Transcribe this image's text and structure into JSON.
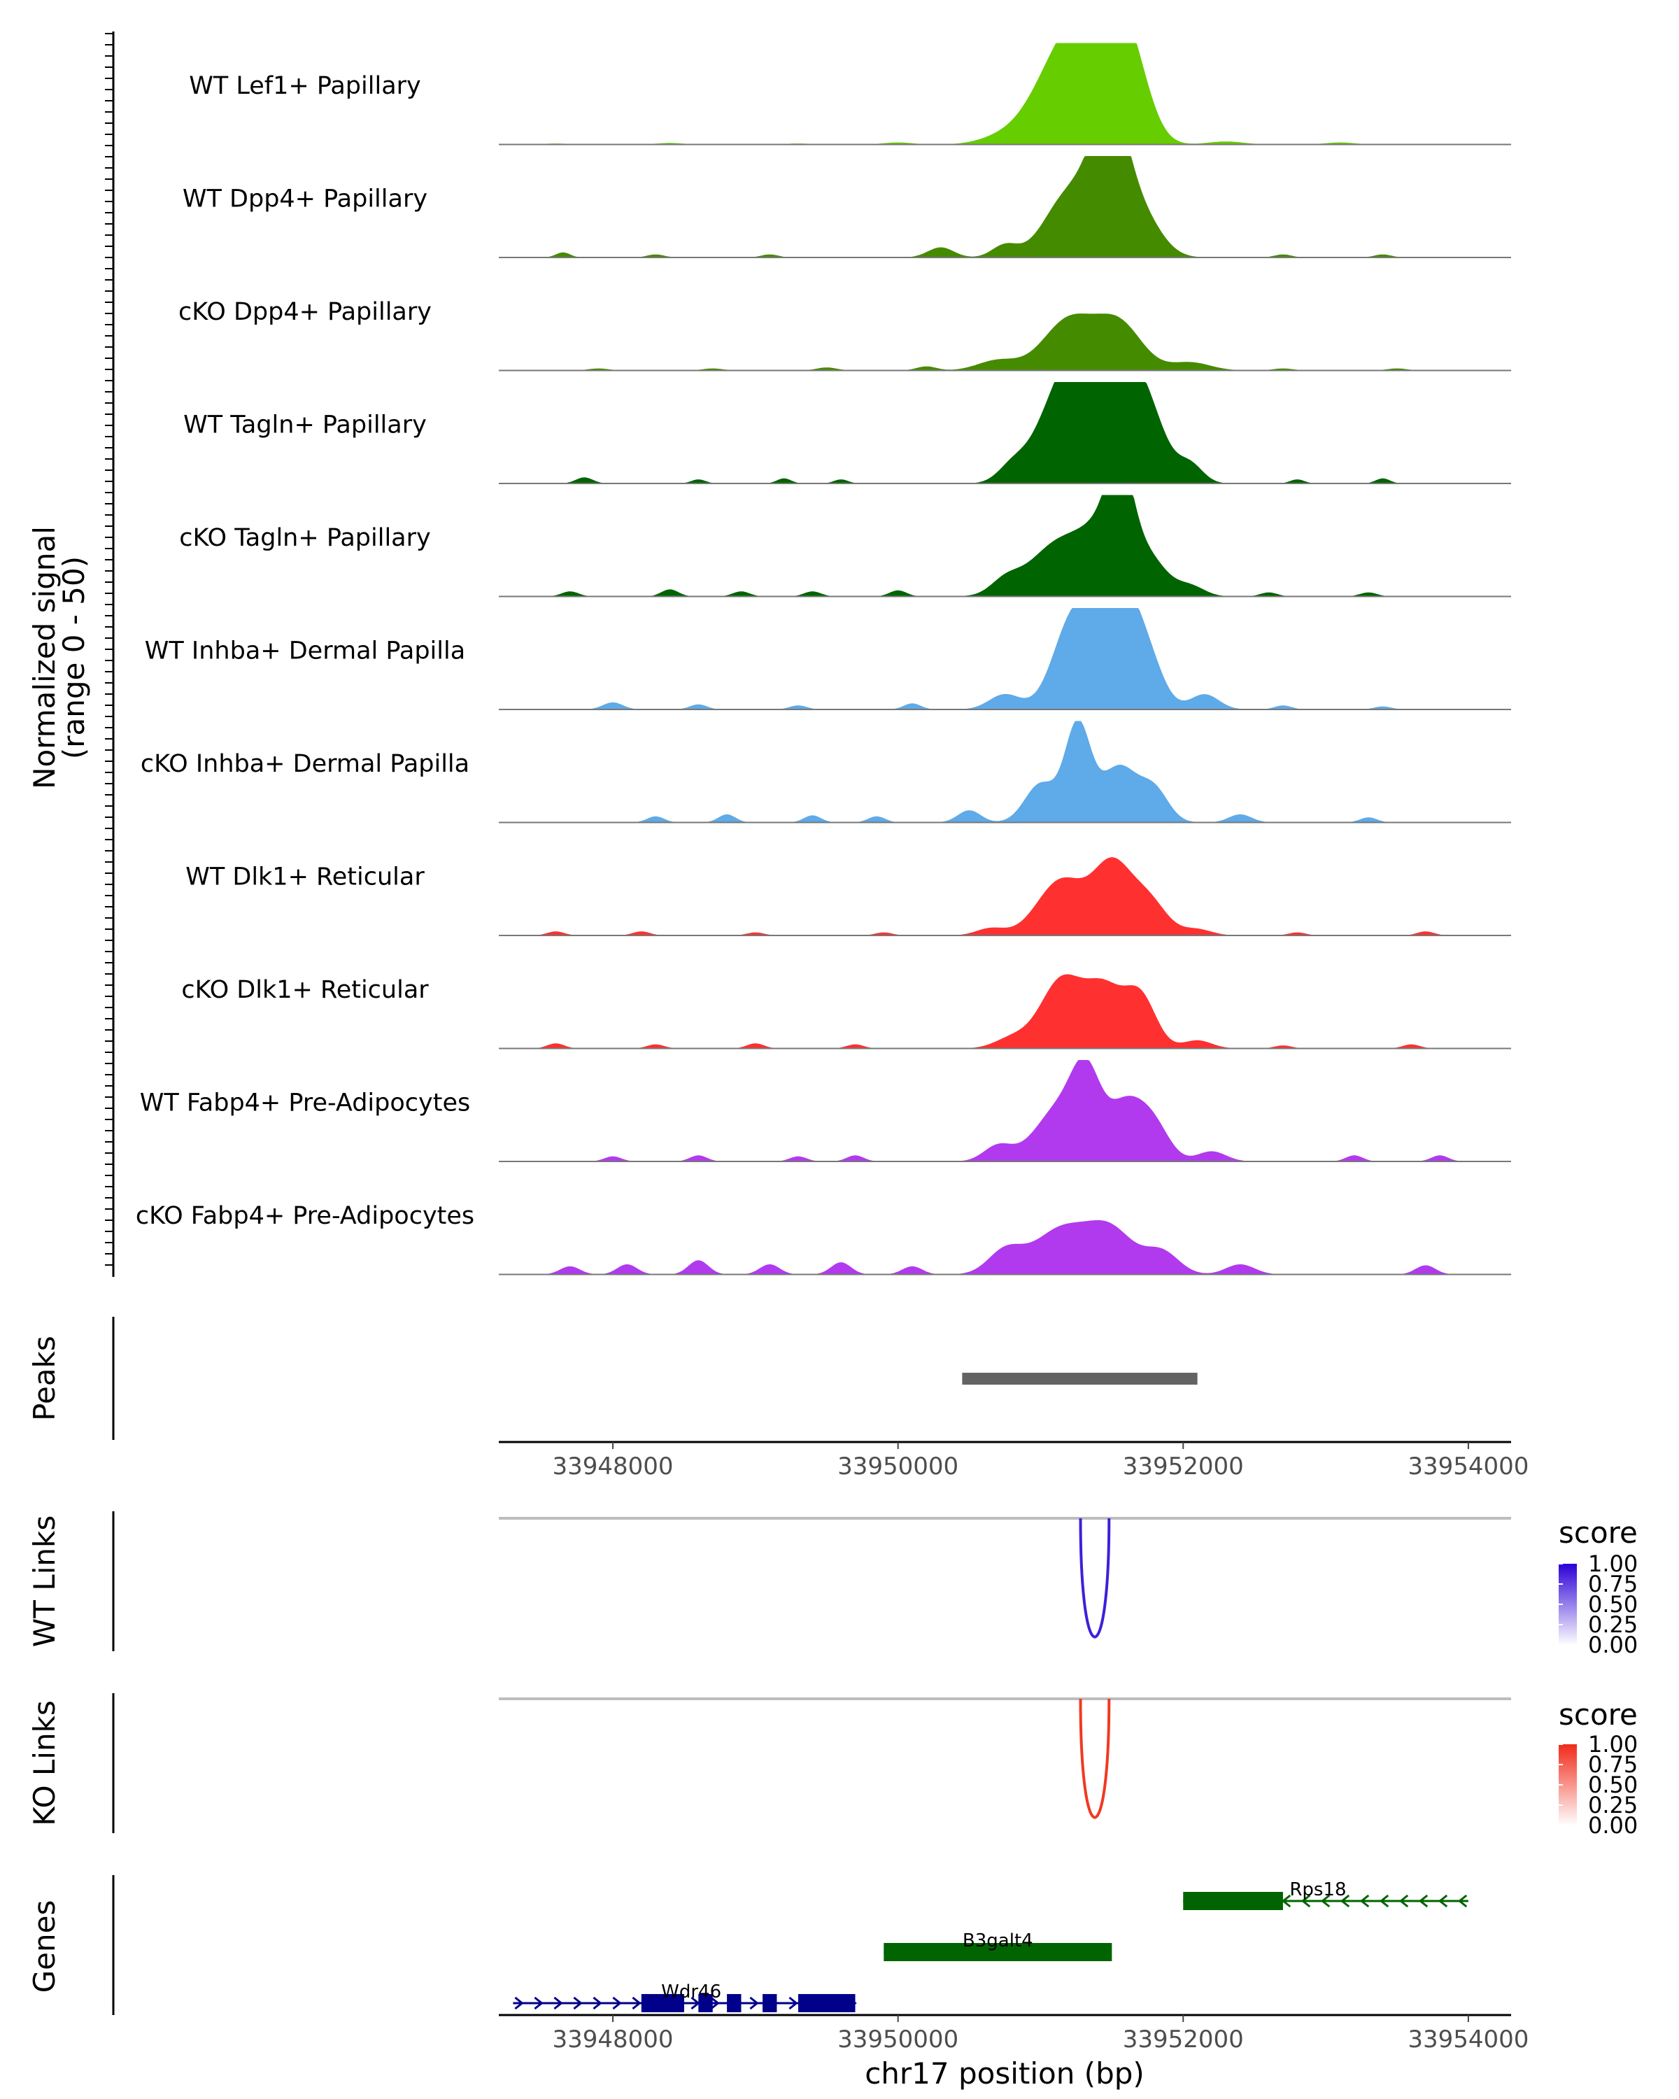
{
  "chart_data": {
    "type": "area",
    "title": "",
    "x_range": [
      33947200,
      33954300
    ],
    "xlabel": "chr17 position (bp)",
    "x_ticks": [
      33948000,
      33950000,
      33952000,
      33954000
    ],
    "x_tick_labels": [
      "33948000",
      "33950000",
      "33952000",
      "33954000"
    ],
    "coverage": {
      "ylabel_line1": "Normalized signal",
      "ylabel_line2": "(range 0 - 50)",
      "ylim": [
        0,
        50
      ],
      "tracks": [
        {
          "name": "WT Lef1+ Papillary",
          "color": "#66CD00",
          "peaks": [
            [
              33951100,
              0.58,
              200
            ],
            [
              33951300,
              0.7,
              180
            ],
            [
              33951500,
              0.78,
              150
            ],
            [
              33951650,
              0.52,
              130
            ],
            [
              33950700,
              0.05,
              150
            ],
            [
              33952300,
              0.03,
              120
            ]
          ],
          "noise": [
            [
              33947600,
              0.01,
              80
            ],
            [
              33948400,
              0.015,
              90
            ],
            [
              33949300,
              0.01,
              80
            ],
            [
              33950000,
              0.02,
              100
            ],
            [
              33953100,
              0.02,
              100
            ]
          ]
        },
        {
          "name": "WT Dpp4+ Papillary",
          "color": "#458B00",
          "peaks": [
            [
              33951200,
              0.62,
              170
            ],
            [
              33951400,
              0.48,
              110
            ],
            [
              33951520,
              0.95,
              110
            ],
            [
              33951700,
              0.42,
              140
            ],
            [
              33950300,
              0.1,
              90
            ],
            [
              33950750,
              0.12,
              90
            ]
          ],
          "noise": [
            [
              33947650,
              0.05,
              50
            ],
            [
              33948300,
              0.03,
              60
            ],
            [
              33949100,
              0.03,
              60
            ],
            [
              33952700,
              0.03,
              60
            ],
            [
              33953400,
              0.03,
              60
            ]
          ]
        },
        {
          "name": "cKO Dpp4+ Papillary",
          "color": "#458B00",
          "peaks": [
            [
              33951200,
              0.5,
              180
            ],
            [
              33951550,
              0.45,
              160
            ],
            [
              33950700,
              0.1,
              140
            ],
            [
              33952050,
              0.08,
              140
            ]
          ],
          "noise": [
            [
              33947900,
              0.02,
              70
            ],
            [
              33948700,
              0.02,
              70
            ],
            [
              33949500,
              0.03,
              70
            ],
            [
              33950200,
              0.04,
              70
            ],
            [
              33952700,
              0.02,
              70
            ],
            [
              33953500,
              0.02,
              70
            ]
          ]
        },
        {
          "name": "WT Tagln+ Papillary",
          "color": "#006400",
          "peaks": [
            [
              33951150,
              0.92,
              170
            ],
            [
              33951350,
              0.8,
              130
            ],
            [
              33951560,
              0.95,
              140
            ],
            [
              33951760,
              0.58,
              130
            ],
            [
              33950800,
              0.15,
              100
            ],
            [
              33952050,
              0.18,
              90
            ]
          ],
          "noise": [
            [
              33947800,
              0.06,
              60
            ],
            [
              33948600,
              0.04,
              50
            ],
            [
              33949200,
              0.05,
              50
            ],
            [
              33949600,
              0.04,
              50
            ],
            [
              33952800,
              0.04,
              50
            ],
            [
              33953400,
              0.05,
              50
            ]
          ]
        },
        {
          "name": "cKO Tagln+ Papillary",
          "color": "#006400",
          "peaks": [
            [
              33951150,
              0.55,
              220
            ],
            [
              33951450,
              0.45,
              140
            ],
            [
              33951560,
              0.85,
              90
            ],
            [
              33951750,
              0.38,
              130
            ],
            [
              33950750,
              0.12,
              100
            ],
            [
              33952050,
              0.1,
              100
            ]
          ],
          "noise": [
            [
              33947700,
              0.05,
              60
            ],
            [
              33948400,
              0.07,
              60
            ],
            [
              33948900,
              0.05,
              60
            ],
            [
              33949400,
              0.05,
              60
            ],
            [
              33950000,
              0.06,
              60
            ],
            [
              33952600,
              0.04,
              60
            ],
            [
              33953300,
              0.04,
              60
            ]
          ]
        },
        {
          "name": "WT Inhba+ Dermal Papilla",
          "color": "#5FAAE8",
          "peaks": [
            [
              33951230,
              0.9,
              140
            ],
            [
              33951430,
              0.62,
              110
            ],
            [
              33951600,
              0.85,
              110
            ],
            [
              33951760,
              0.42,
              110
            ],
            [
              33950750,
              0.15,
              110
            ],
            [
              33952150,
              0.15,
              100
            ]
          ],
          "noise": [
            [
              33948000,
              0.07,
              70
            ],
            [
              33948600,
              0.05,
              60
            ],
            [
              33949300,
              0.04,
              60
            ],
            [
              33950100,
              0.06,
              60
            ],
            [
              33952700,
              0.04,
              60
            ],
            [
              33953400,
              0.03,
              60
            ]
          ]
        },
        {
          "name": "cKO Inhba+ Dermal Papilla",
          "color": "#5FAAE8",
          "peaks": [
            [
              33951000,
              0.38,
              110
            ],
            [
              33951260,
              0.95,
              90
            ],
            [
              33951550,
              0.55,
              130
            ],
            [
              33951800,
              0.3,
              100
            ],
            [
              33950500,
              0.12,
              80
            ],
            [
              33952400,
              0.08,
              80
            ]
          ],
          "noise": [
            [
              33948300,
              0.06,
              60
            ],
            [
              33948800,
              0.08,
              60
            ],
            [
              33949400,
              0.07,
              60
            ],
            [
              33949850,
              0.06,
              60
            ],
            [
              33953300,
              0.05,
              60
            ]
          ]
        },
        {
          "name": "WT Dlk1+ Reticular",
          "color": "#FF3030",
          "peaks": [
            [
              33951150,
              0.55,
              170
            ],
            [
              33951500,
              0.65,
              130
            ],
            [
              33951750,
              0.35,
              130
            ],
            [
              33950650,
              0.07,
              100
            ],
            [
              33952100,
              0.06,
              100
            ]
          ],
          "noise": [
            [
              33947600,
              0.04,
              60
            ],
            [
              33948200,
              0.04,
              60
            ],
            [
              33949000,
              0.03,
              60
            ],
            [
              33949900,
              0.03,
              60
            ],
            [
              33952800,
              0.03,
              60
            ],
            [
              33953700,
              0.04,
              60
            ]
          ]
        },
        {
          "name": "cKO Dlk1+ Reticular",
          "color": "#FF3030",
          "peaks": [
            [
              33951150,
              0.68,
              150
            ],
            [
              33951450,
              0.55,
              130
            ],
            [
              33951700,
              0.5,
              110
            ],
            [
              33950800,
              0.1,
              120
            ],
            [
              33952100,
              0.08,
              100
            ]
          ],
          "noise": [
            [
              33947600,
              0.05,
              60
            ],
            [
              33948300,
              0.04,
              60
            ],
            [
              33949000,
              0.05,
              60
            ],
            [
              33949700,
              0.04,
              60
            ],
            [
              33952700,
              0.03,
              60
            ],
            [
              33953600,
              0.04,
              60
            ]
          ]
        },
        {
          "name": "WT Fabp4+ Pre-Adipocytes",
          "color": "#B23AEE",
          "peaks": [
            [
              33951150,
              0.55,
              180
            ],
            [
              33951320,
              0.62,
              100
            ],
            [
              33951600,
              0.55,
              130
            ],
            [
              33951800,
              0.3,
              110
            ],
            [
              33950700,
              0.15,
              100
            ],
            [
              33952200,
              0.1,
              100
            ]
          ],
          "noise": [
            [
              33948000,
              0.05,
              60
            ],
            [
              33948600,
              0.06,
              60
            ],
            [
              33949300,
              0.05,
              60
            ],
            [
              33949700,
              0.06,
              60
            ],
            [
              33953200,
              0.06,
              60
            ],
            [
              33953800,
              0.06,
              60
            ]
          ]
        },
        {
          "name": "cKO Fabp4+ Pre-Adipocytes",
          "color": "#B23AEE",
          "peaks": [
            [
              33950750,
              0.22,
              120
            ],
            [
              33951150,
              0.45,
              200
            ],
            [
              33951500,
              0.4,
              160
            ],
            [
              33951850,
              0.22,
              120
            ],
            [
              33952400,
              0.1,
              100
            ]
          ],
          "noise": [
            [
              33947700,
              0.08,
              70
            ],
            [
              33948100,
              0.1,
              70
            ],
            [
              33948600,
              0.14,
              70
            ],
            [
              33949100,
              0.1,
              70
            ],
            [
              33949600,
              0.12,
              70
            ],
            [
              33950100,
              0.08,
              70
            ],
            [
              33953700,
              0.09,
              70
            ]
          ]
        }
      ]
    },
    "peaks_track": {
      "label": "Peaks",
      "regions": [
        [
          33950450,
          33952100
        ]
      ],
      "color": "#636363"
    },
    "links": [
      {
        "label": "WT Links",
        "start": 33951280,
        "end": 33951480,
        "score": 1.0,
        "color": "#3F1FD9",
        "legend_title": "score",
        "legend_labels": [
          "1.00",
          "0.75",
          "0.50",
          "0.25",
          "0.00"
        ],
        "legend_color": "#2C00D6"
      },
      {
        "label": "KO Links",
        "start": 33951280,
        "end": 33951480,
        "score": 1.0,
        "color": "#F03A20",
        "legend_title": "score",
        "legend_labels": [
          "1.00",
          "0.75",
          "0.50",
          "0.25",
          "0.00"
        ],
        "legend_color": "#F12A1A"
      }
    ],
    "genes": {
      "label": "Genes",
      "items": [
        {
          "name": "Rps18",
          "strand": "-",
          "start": 33952000,
          "end": 33954000,
          "exons": [
            [
              33952000,
              33952700
            ]
          ],
          "color": "#006400",
          "row": 0
        },
        {
          "name": "B3galt4",
          "strand": "+",
          "start": 33949900,
          "end": 33951500,
          "exons": [
            [
              33949900,
              33951500
            ]
          ],
          "color": "#006400",
          "row": 1
        },
        {
          "name": "Wdr46",
          "strand": "+",
          "start": 33947300,
          "end": 33949700,
          "exons": [
            [
              33948200,
              33948500
            ],
            [
              33948600,
              33948700
            ],
            [
              33948800,
              33948900
            ],
            [
              33949050,
              33949150
            ],
            [
              33949300,
              33949700
            ]
          ],
          "color": "#00008B",
          "row": 2
        }
      ]
    }
  }
}
